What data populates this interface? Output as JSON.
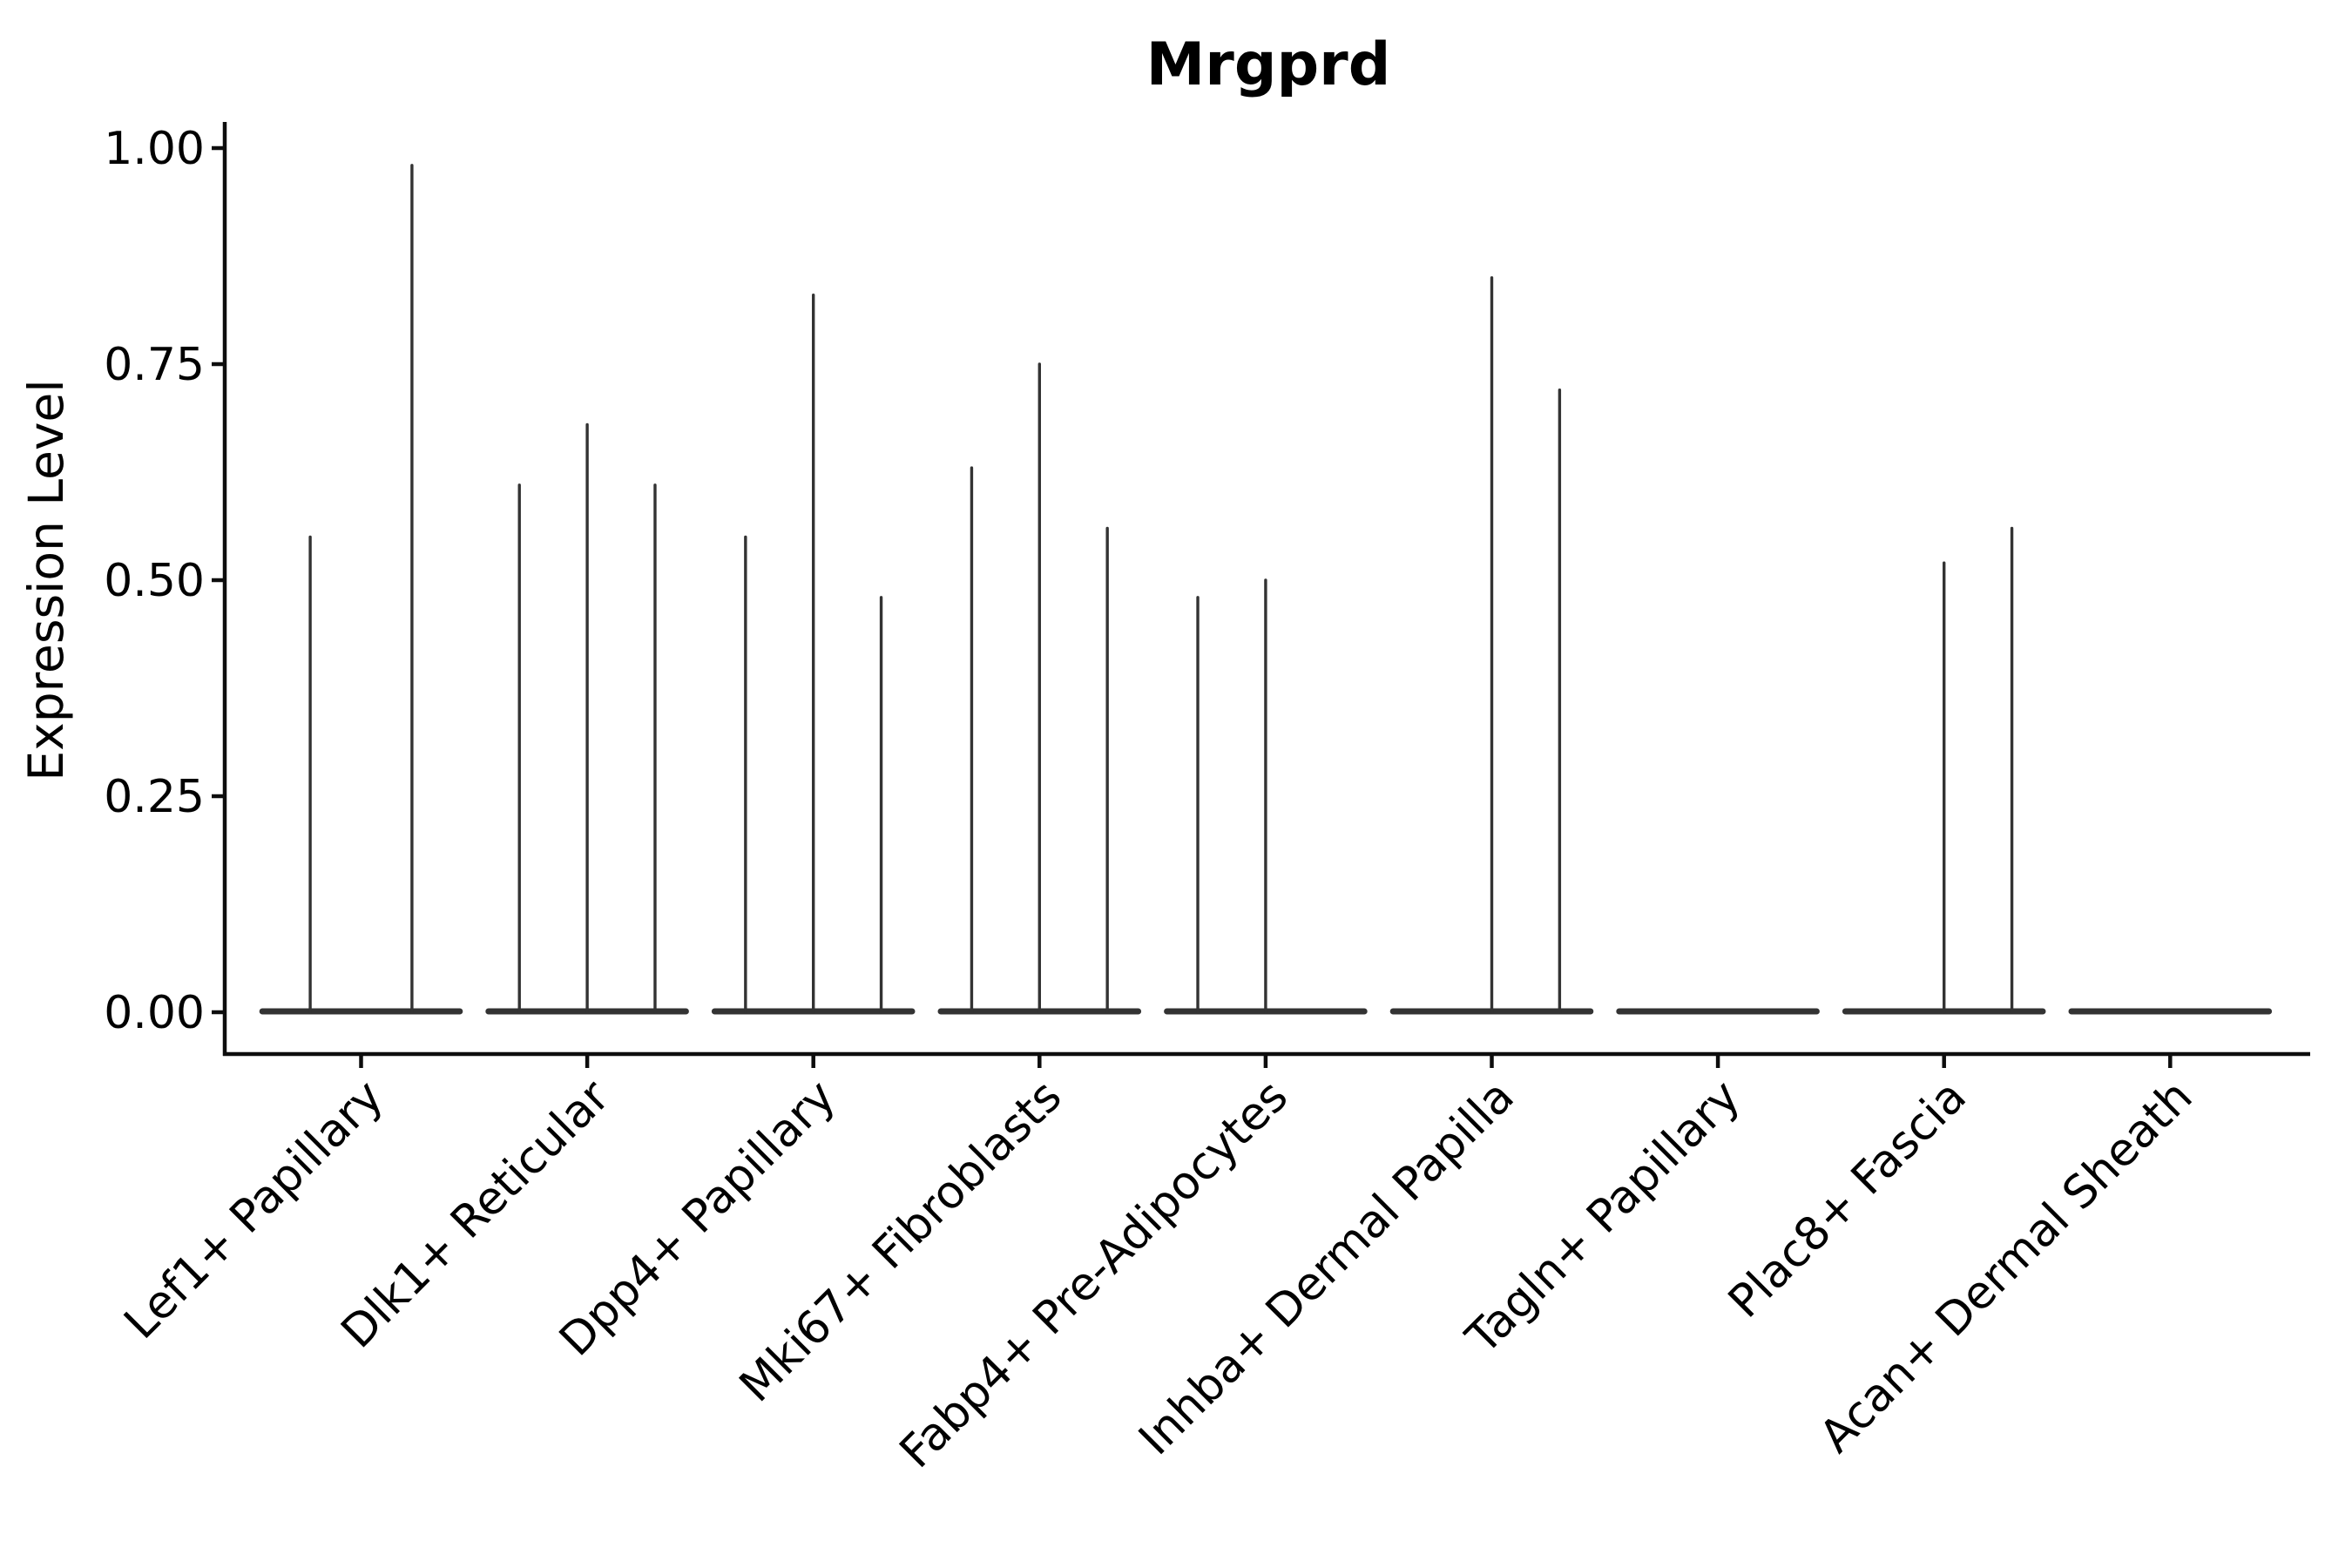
{
  "chart_data": {
    "type": "violin",
    "title": "Mrgprd",
    "ylabel": "Expression Level",
    "xlabel": "",
    "grid": false,
    "legend": "none",
    "ylim": [
      -0.05,
      1.03
    ],
    "y_ticks": [
      {
        "value": 0.0,
        "label": "0.00"
      },
      {
        "value": 0.25,
        "label": "0.25"
      },
      {
        "value": 0.5,
        "label": "0.50"
      },
      {
        "value": 0.75,
        "label": "0.75"
      },
      {
        "value": 1.0,
        "label": "1.00"
      }
    ],
    "description": "Grouped violin plot; expression is near zero for most cells so each violin collapses to a flat baseline at 0 with a thin spike reaching the maximum expression value. A max of 0 means that violin is completely flat.",
    "categories": [
      {
        "label": "Lef1+ Papillary",
        "violin_maxima": [
          0.55,
          0.98
        ]
      },
      {
        "label": "Dlk1+ Reticular",
        "violin_maxima": [
          0.61,
          0.68,
          0.61
        ]
      },
      {
        "label": "Dpp4+ Papillary",
        "violin_maxima": [
          0.55,
          0.83,
          0.48
        ]
      },
      {
        "label": "Mki67+ Fibroblasts",
        "violin_maxima": [
          0.63,
          0.75,
          0.56
        ]
      },
      {
        "label": "Fabp4+ Pre-Adipocytes",
        "violin_maxima": [
          0.48,
          0.5,
          0
        ]
      },
      {
        "label": "Inhba+ Dermal Papilla",
        "violin_maxima": [
          0,
          0.85,
          0.72
        ]
      },
      {
        "label": "Tagln+ Papillary",
        "violin_maxima": [
          0,
          0,
          0
        ]
      },
      {
        "label": "Plac8+ Fascia",
        "violin_maxima": [
          0,
          0.52,
          0.56
        ]
      },
      {
        "label": "Acan+ Dermal Sheath",
        "violin_maxima": [
          0,
          0,
          0
        ]
      }
    ],
    "colors": {
      "background": "#ffffff",
      "violin": "#333333",
      "axis": "#0d0d0d",
      "text": "#000000"
    }
  }
}
